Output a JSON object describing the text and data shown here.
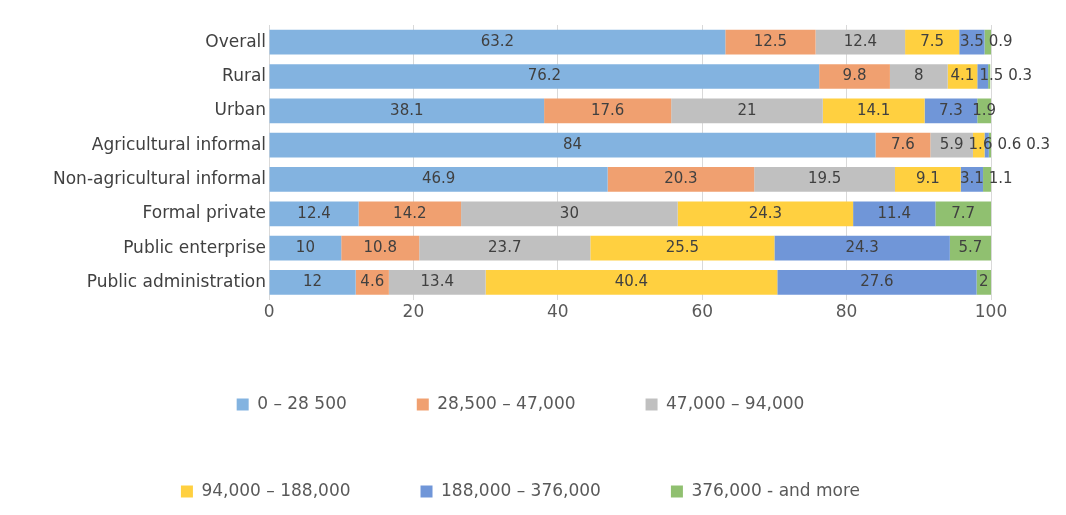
{
  "chart_data": {
    "type": "bar",
    "orientation": "horizontal",
    "stacked": true,
    "data_labels": true,
    "grid": "x",
    "legend": "bottom",
    "categories": [
      "Overall",
      "Rural",
      "Urban",
      "Agricultural informal",
      "Non-agricultural informal",
      "Formal private",
      "Public enterprise",
      "Public administration"
    ],
    "xlim": [
      0,
      100
    ],
    "xticks": [
      0,
      20,
      40,
      60,
      80,
      100
    ],
    "series": [
      {
        "name": "0 – 28 500",
        "color": "#83b3e0",
        "values": [
          63.2,
          76.2,
          38.1,
          84,
          46.9,
          12.4,
          10,
          12
        ]
      },
      {
        "name": "28,500 – 47,000",
        "color": "#f0a070",
        "values": [
          12.5,
          9.8,
          17.6,
          7.6,
          20.3,
          14.2,
          10.8,
          4.6
        ]
      },
      {
        "name": "47,000 – 94,000",
        "color": "#c0c0c0",
        "values": [
          12.4,
          8,
          21,
          5.9,
          19.5,
          30,
          23.7,
          13.4
        ]
      },
      {
        "name": "94,000 – 188,000",
        "color": "#ffd040",
        "values": [
          7.5,
          4.1,
          14.1,
          1.6,
          9.1,
          24.3,
          25.5,
          40.4
        ]
      },
      {
        "name": "188,000 – 376,000",
        "color": "#7096d8",
        "values": [
          3.5,
          1.5,
          7.3,
          0.6,
          3.1,
          11.4,
          24.3,
          27.6
        ]
      },
      {
        "name": "376,000 - and more",
        "color": "#90c070",
        "values": [
          0.9,
          0.3,
          1.9,
          0.3,
          1.1,
          7.7,
          5.7,
          2
        ]
      }
    ]
  }
}
